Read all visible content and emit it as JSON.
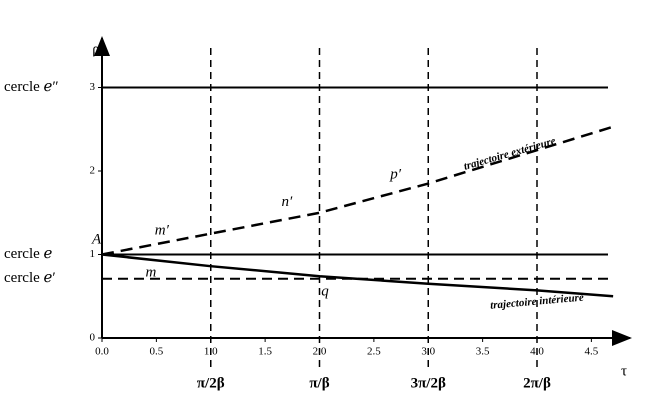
{
  "chart_data": {
    "type": "line",
    "y_label": "ρ",
    "x_label": "τ",
    "xlim": [
      0,
      4.8
    ],
    "ylim": [
      0,
      3.6
    ],
    "xticks": [
      {
        "value": 0,
        "label": "0.0"
      },
      0.5,
      {
        "value": 1,
        "label": "1.0"
      },
      1.5,
      {
        "value": 2,
        "label": "2.0"
      },
      2.5,
      {
        "value": 3,
        "label": "3.0"
      },
      3.5,
      {
        "value": 4,
        "label": "4.0"
      },
      4.5
    ],
    "yticks": [
      0,
      1,
      2,
      3
    ],
    "x": [
      0,
      1,
      2,
      3,
      4,
      4.7
    ],
    "series": [
      {
        "name": "trajectoire extérieure",
        "color": "#000000",
        "dashed": true,
        "values": [
          1,
          1.25,
          1.5,
          1.85,
          2.25,
          2.53
        ]
      },
      {
        "name": "trajectoire intérieure",
        "color": "#000000",
        "dashed": false,
        "values": [
          1,
          0.86,
          0.74,
          0.65,
          0.57,
          0.5
        ]
      }
    ],
    "reference_lines": [
      {
        "label": "cercle ℯ″",
        "value": 3,
        "dashed": false
      },
      {
        "label": "cercle ℯ",
        "value": 1,
        "dashed": false
      },
      {
        "label": "cercle ℯ′",
        "value": 0.71,
        "dashed": true
      }
    ],
    "x_markers": [
      {
        "value": 1,
        "label": "π/2β"
      },
      {
        "value": 2,
        "label": "π/β"
      },
      {
        "value": 3,
        "label": "3π/2β"
      },
      {
        "value": 4,
        "label": "2π/β"
      }
    ],
    "annotations": [
      "A",
      "m",
      "m′",
      "n′",
      "p′",
      "q"
    ]
  }
}
